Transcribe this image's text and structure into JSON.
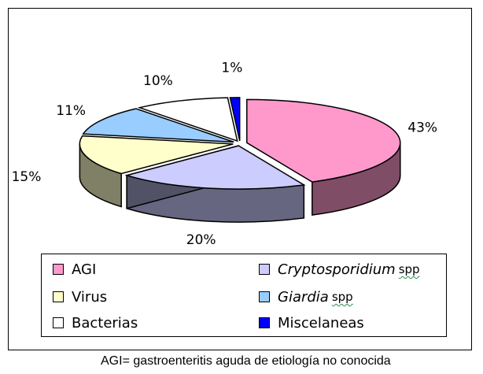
{
  "chart_data": {
    "type": "pie",
    "style": "3d-exploded",
    "categories": [
      "AGI",
      "Cryptosporidium spp",
      "Virus",
      "Giardia spp",
      "Bacterias",
      "Miscelaneas"
    ],
    "values": [
      43,
      20,
      15,
      11,
      10,
      1
    ],
    "data_labels": [
      "43%",
      "20%",
      "15%",
      "11%",
      "10%",
      "1%"
    ],
    "colors": [
      "#ff99cc",
      "#ccccff",
      "#ffffcc",
      "#99ccff",
      "#ffffff",
      "#0000ff"
    ],
    "legend_position": "bottom",
    "legend": [
      {
        "label": "AGI",
        "italic": false,
        "suffix": ""
      },
      {
        "label": "Cryptosporidium",
        "italic": true,
        "suffix": "spp"
      },
      {
        "label": "Virus",
        "italic": false,
        "suffix": ""
      },
      {
        "label": "Giardia",
        "italic": true,
        "suffix": "spp"
      },
      {
        "label": "Bacterias",
        "italic": false,
        "suffix": ""
      },
      {
        "label": "Miscelaneas",
        "italic": false,
        "suffix": ""
      }
    ]
  },
  "footnote": "AGI= gastroenteritis aguda de etiología no conocida"
}
